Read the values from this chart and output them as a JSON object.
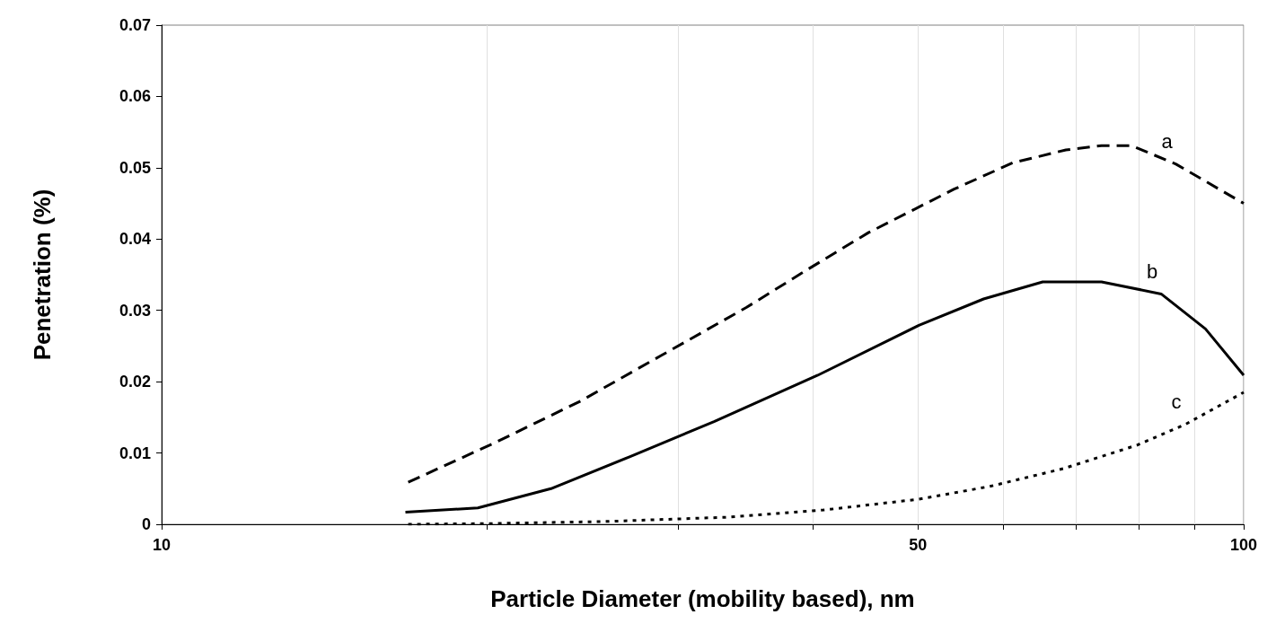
{
  "chart_data": {
    "type": "line",
    "xlabel": "Particle Diameter (mobility based), nm",
    "ylabel": "Penetration (%)",
    "log": "x",
    "grid": "x",
    "marker": "none",
    "xlim": [
      10,
      100
    ],
    "xticks": [
      10,
      {
        "value": 20,
        "label": null
      },
      {
        "value": 30,
        "label": null
      },
      {
        "value": 40,
        "label": null
      },
      50,
      {
        "value": 60,
        "label": null
      },
      {
        "value": 70,
        "label": null
      },
      {
        "value": 80,
        "label": null
      },
      {
        "value": 90,
        "label": null
      },
      100
    ],
    "ylim": [
      0,
      0.07
    ],
    "yticks": [
      0,
      0.01,
      0.02,
      0.03,
      0.04,
      0.05,
      0.06,
      0.07
    ],
    "series": [
      {
        "name": "a",
        "color": "#000000",
        "line_style": "dashed",
        "x": [
          16.9,
          20.3,
          24.4,
          28.9,
          34.7,
          39.4,
          45.0,
          54.0,
          61.2,
          68.5,
          73.9,
          78.8,
          86.6,
          100
        ],
        "values": [
          0.0059,
          0.0114,
          0.0173,
          0.0236,
          0.0304,
          0.0356,
          0.0409,
          0.047,
          0.0507,
          0.0525,
          0.0531,
          0.0531,
          0.0505,
          0.045
        ]
      },
      {
        "name": "b",
        "color": "#000000",
        "line_style": "solid",
        "x": [
          16.8,
          19.6,
          22.9,
          27.1,
          32.4,
          40.4,
          50.1,
          57.5,
          65.2,
          73.9,
          83.9,
          92.2,
          100
        ],
        "values": [
          0.0017,
          0.0023,
          0.005,
          0.0095,
          0.0144,
          0.0209,
          0.0279,
          0.0316,
          0.034,
          0.034,
          0.0323,
          0.0274,
          0.0209
        ]
      },
      {
        "name": "c",
        "color": "#000000",
        "line_style": "dotted",
        "x": [
          16.9,
          20.1,
          25.8,
          33.4,
          40.9,
          50,
          58.2,
          68.1,
          79.7,
          88.3,
          100
        ],
        "values": [
          0,
          0.0001,
          0.0004,
          0.001,
          0.002,
          0.0035,
          0.0053,
          0.0078,
          0.0111,
          0.014,
          0.0185
        ]
      }
    ]
  }
}
